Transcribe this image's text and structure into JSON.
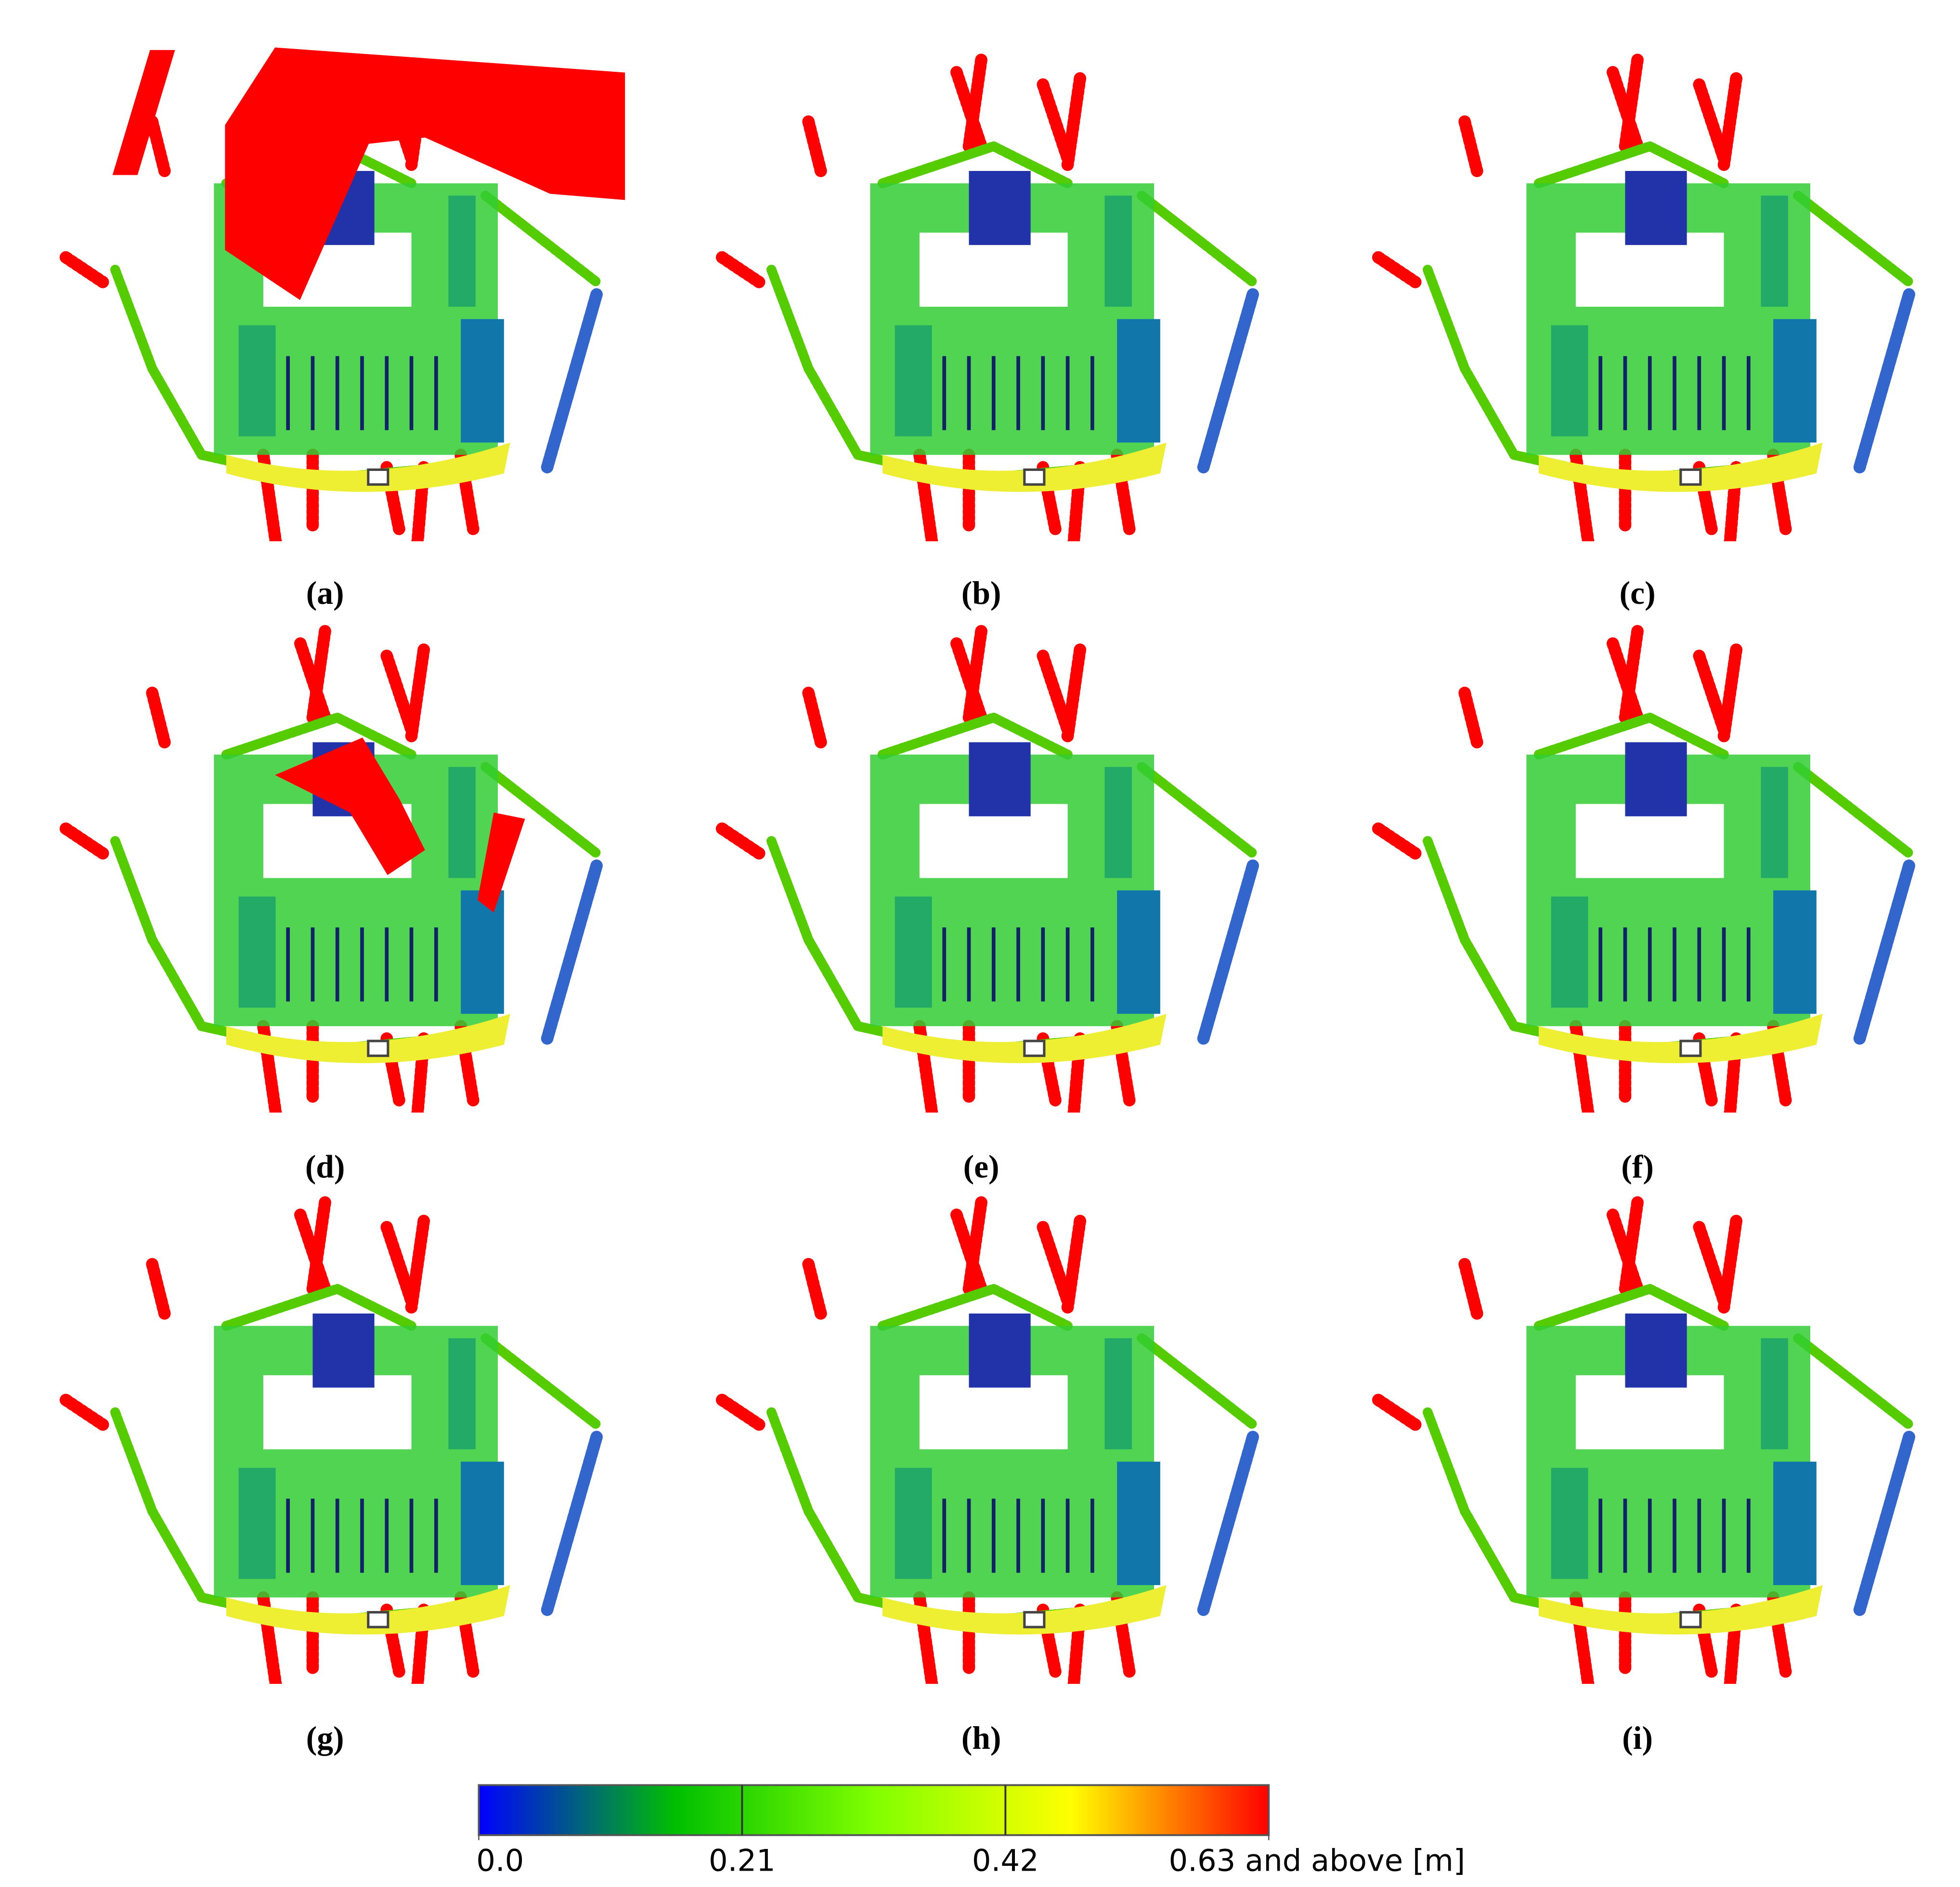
{
  "panel_labels": [
    "(a)",
    "(b)",
    "(c)",
    "(d)",
    "(e)",
    "(f)",
    "(g)",
    "(h)",
    "(i)"
  ],
  "colorbar": {
    "lim": [
      0,
      0.63
    ],
    "ticks": [
      {
        "value": 0,
        "label": "0.0"
      },
      0.21,
      0.42,
      {
        "value": 0.63,
        "label": "0.63 and above [m]"
      }
    ],
    "colors": [
      "#0000ff",
      "#00c000",
      "#80ff00",
      "#ffff00",
      "#ff0000"
    ]
  }
}
